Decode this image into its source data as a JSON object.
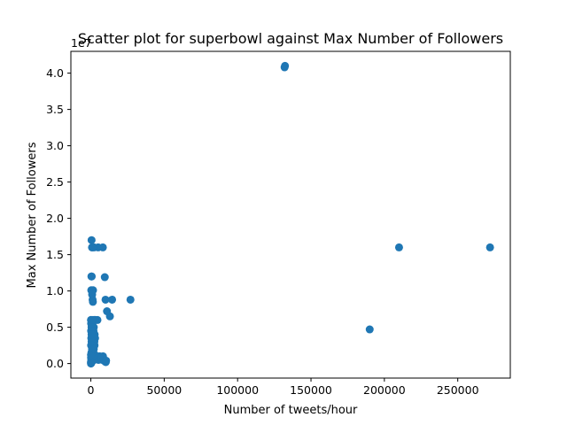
{
  "chart_data": {
    "type": "scatter",
    "title": "Scatter plot for superbowl against Max Number of Followers",
    "xlabel": "Number of tweets/hour",
    "ylabel": "Max Number of Followers",
    "y_offset_label": "1e7",
    "xlim": [
      -13600,
      285800
    ],
    "ylim": [
      -0.2,
      4.3
    ],
    "x_ticks": [
      0,
      50000,
      100000,
      150000,
      200000,
      250000
    ],
    "x_tick_labels": [
      "0",
      "50000",
      "100000",
      "150000",
      "200000",
      "250000"
    ],
    "y_ticks": [
      0.0,
      0.5,
      1.0,
      1.5,
      2.0,
      2.5,
      3.0,
      3.5,
      4.0
    ],
    "y_tick_labels": [
      "0.0",
      "0.5",
      "1.0",
      "1.5",
      "2.0",
      "2.5",
      "3.0",
      "3.5",
      "4.0"
    ],
    "marker_color": "#1f77b4",
    "grid": false,
    "series": [
      {
        "x": [
          132000,
          132300,
          210000,
          272000,
          190000,
          27000,
          14500,
          13000,
          11000,
          10200,
          9500,
          10000,
          8200,
          7800,
          7000,
          6000,
          5000,
          4500,
          3000,
          2700,
          2200,
          1500,
          1200,
          1000,
          500,
          400,
          200,
          100,
          800,
          600,
          300,
          1600,
          2400,
          2000,
          1800,
          1400,
          900,
          700,
          500,
          200,
          1200,
          2600,
          3200,
          1500,
          800,
          300,
          100,
          50,
          150,
          1000,
          2100,
          2800,
          3300,
          4200,
          5200,
          6200,
          7200,
          8300,
          9600,
          10400,
          600,
          1300,
          1900,
          2500,
          400,
          1700,
          200,
          900,
          1100,
          2300,
          800,
          1500,
          2900,
          500,
          1000,
          1800,
          700,
          2400,
          1200,
          300,
          600,
          1400,
          100,
          2000,
          200,
          500,
          900
        ],
        "y": [
          4.08,
          4.1,
          1.6,
          1.6,
          0.47,
          0.88,
          0.88,
          0.65,
          0.72,
          0.02,
          1.19,
          0.88,
          1.6,
          0.05,
          0.07,
          0.1,
          1.6,
          0.6,
          0.6,
          0.6,
          1.6,
          1.01,
          0.88,
          1.6,
          1.7,
          1.2,
          0.6,
          0.6,
          1.6,
          1.2,
          1.01,
          0.6,
          0.6,
          0.5,
          0.45,
          0.85,
          0.95,
          0.55,
          0.3,
          0.25,
          0.35,
          0.4,
          0.1,
          0.15,
          0.2,
          0.05,
          0.0,
          0.02,
          0.08,
          0.05,
          0.1,
          0.12,
          0.08,
          0.06,
          0.05,
          0.08,
          0.09,
          0.1,
          0.03,
          0.04,
          0.4,
          0.3,
          0.35,
          0.25,
          0.15,
          0.2,
          0.45,
          0.55,
          0.3,
          0.05,
          0.1,
          0.4,
          0.35,
          0.5,
          0.2,
          0.15,
          0.02,
          0.3,
          0.5,
          0.35,
          0.25,
          0.1,
          0.12,
          0.2,
          0.55,
          0.4,
          0.6
        ]
      }
    ]
  }
}
